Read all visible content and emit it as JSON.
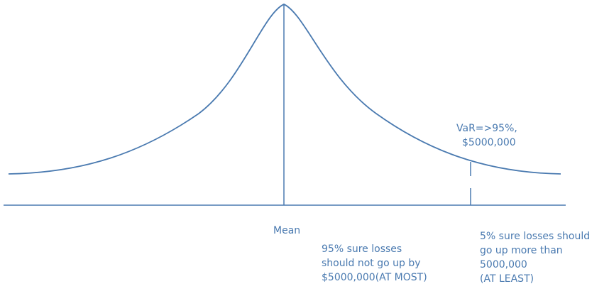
{
  "labels": {
    "var_line1": "VaR=>95%,",
    "var_line2": "$5000,000",
    "mean": "Mean",
    "left_region_line1": "95% sure losses",
    "left_region_line2": "should not go up by",
    "left_region_line3": "$5000,000(AT MOST)",
    "right_region_line1": "5% sure losses should",
    "right_region_line2": "go up more than",
    "right_region_line3": "5000,000",
    "right_region_line4": "(AT LEAST)"
  },
  "colors": {
    "line": "#4a7ab0",
    "text": "#4a7ab0"
  }
}
